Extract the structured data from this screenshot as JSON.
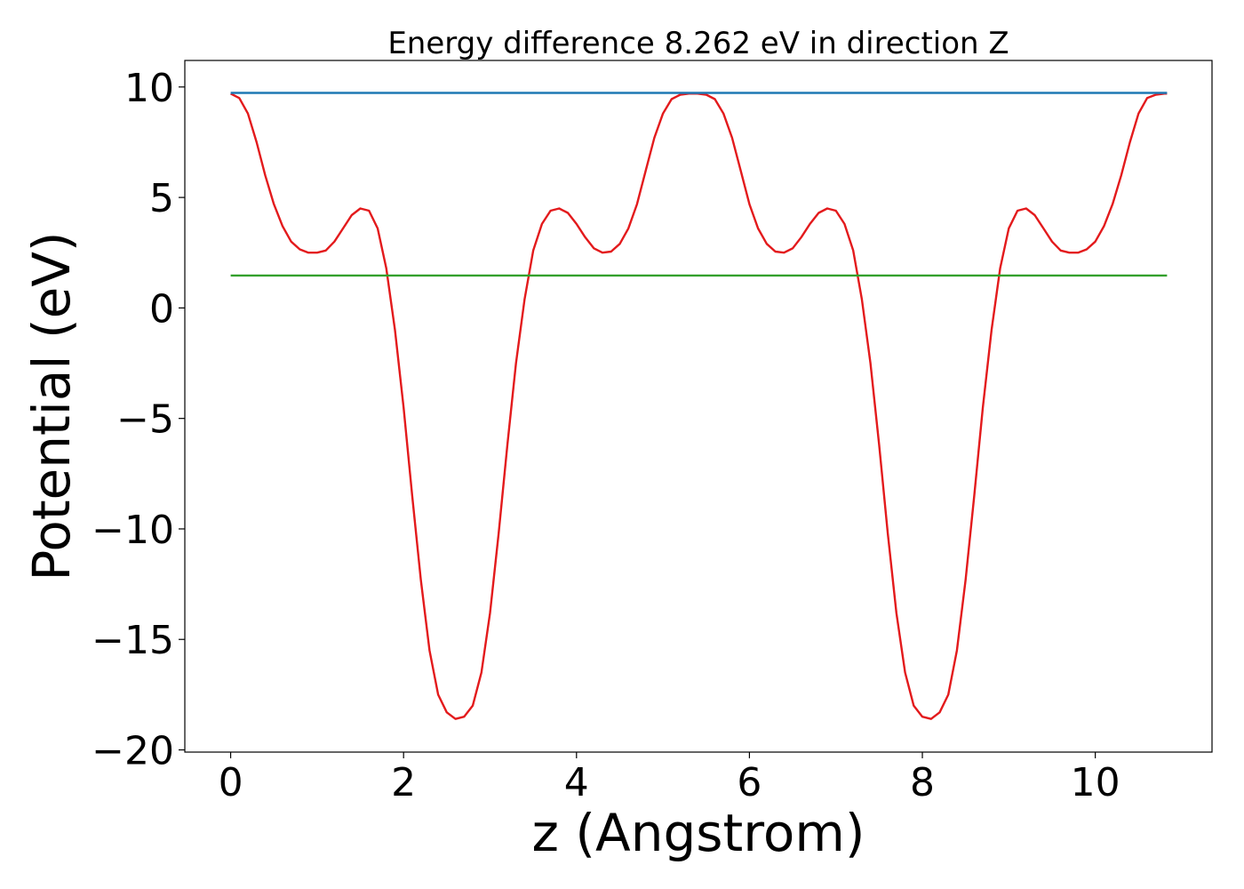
{
  "chart_data": {
    "type": "line",
    "title": "Energy difference 8.262 eV in direction Z",
    "xlabel": "z (Angstrom)",
    "ylabel": "Potential (eV)",
    "xlim": [
      -0.53,
      11.35
    ],
    "ylim": [
      -20.1,
      11.2
    ],
    "xticks": [
      0,
      2,
      4,
      6,
      8,
      10
    ],
    "yticks": [
      10,
      5,
      0,
      -5,
      -10,
      -15,
      -20
    ],
    "xtick_labels": [
      "0",
      "2",
      "4",
      "6",
      "8",
      "10"
    ],
    "ytick_labels": [
      "10",
      "5",
      "0",
      "−5",
      "−10",
      "−15",
      "−20"
    ],
    "grid": false,
    "legend": "none",
    "series": [
      {
        "color": "#e31a1c",
        "x": [
          0.0,
          0.1,
          0.2,
          0.3,
          0.4,
          0.5,
          0.6,
          0.7,
          0.8,
          0.9,
          1.0,
          1.1,
          1.2,
          1.3,
          1.4,
          1.5,
          1.6,
          1.7,
          1.8,
          1.9,
          2.0,
          2.1,
          2.2,
          2.3,
          2.4,
          2.5,
          2.6,
          2.7,
          2.8,
          2.9,
          3.0,
          3.1,
          3.2,
          3.3,
          3.4,
          3.5,
          3.6,
          3.7,
          3.8,
          3.9,
          4.0,
          4.1,
          4.2,
          4.3,
          4.4,
          4.5,
          4.6,
          4.7,
          4.8,
          4.9,
          5.0,
          5.1,
          5.2,
          5.3,
          5.4,
          5.5,
          5.6,
          5.7,
          5.8,
          5.9,
          6.0,
          6.1,
          6.2,
          6.3,
          6.4,
          6.5,
          6.6,
          6.7,
          6.8,
          6.9,
          7.0,
          7.1,
          7.2,
          7.3,
          7.4,
          7.5,
          7.6,
          7.7,
          7.8,
          7.9,
          8.0,
          8.1,
          8.2,
          8.3,
          8.4,
          8.5,
          8.6,
          8.7,
          8.8,
          8.9,
          9.0,
          9.1,
          9.2,
          9.3,
          9.4,
          9.5,
          9.6,
          9.7,
          9.8,
          9.9,
          10.0,
          10.1,
          10.2,
          10.3,
          10.4,
          10.5,
          10.6,
          10.7,
          10.8,
          10.83
        ],
        "y": [
          9.7,
          9.5,
          8.8,
          7.5,
          6.0,
          4.7,
          3.7,
          3.0,
          2.65,
          2.5,
          2.5,
          2.6,
          3.0,
          3.6,
          4.2,
          4.5,
          4.4,
          3.6,
          1.8,
          -1.0,
          -4.5,
          -8.5,
          -12.3,
          -15.5,
          -17.5,
          -18.3,
          -18.6,
          -18.5,
          -18.0,
          -16.5,
          -13.8,
          -10.2,
          -6.2,
          -2.5,
          0.4,
          2.6,
          3.8,
          4.4,
          4.5,
          4.3,
          3.8,
          3.2,
          2.7,
          2.5,
          2.55,
          2.9,
          3.6,
          4.7,
          6.2,
          7.7,
          8.8,
          9.45,
          9.65,
          9.7,
          9.7,
          9.65,
          9.45,
          8.8,
          7.7,
          6.2,
          4.7,
          3.6,
          2.9,
          2.55,
          2.5,
          2.7,
          3.2,
          3.8,
          4.3,
          4.5,
          4.4,
          3.8,
          2.6,
          0.4,
          -2.5,
          -6.2,
          -10.2,
          -13.8,
          -16.5,
          -18.0,
          -18.5,
          -18.6,
          -18.3,
          -17.5,
          -15.5,
          -12.3,
          -8.5,
          -4.5,
          -1.0,
          1.8,
          3.6,
          4.4,
          4.5,
          4.2,
          3.6,
          3.0,
          2.6,
          2.5,
          2.5,
          2.65,
          3.0,
          3.7,
          4.7,
          6.0,
          7.5,
          8.8,
          9.5,
          9.65,
          9.7,
          9.7
        ]
      },
      {
        "color": "#1f78b4",
        "x": [
          0.0,
          10.83
        ],
        "y": [
          9.73,
          9.73
        ]
      },
      {
        "color": "#33a02c",
        "x": [
          0.0,
          10.83
        ],
        "y": [
          1.47,
          1.47
        ]
      }
    ]
  }
}
